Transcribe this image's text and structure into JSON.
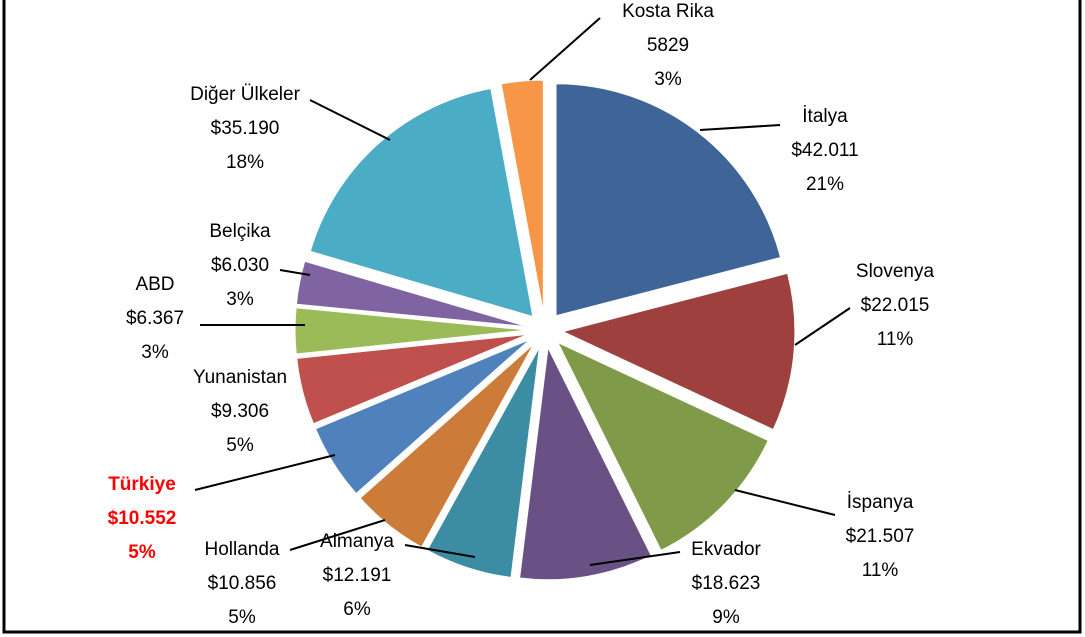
{
  "chart_data": {
    "type": "pie",
    "categories": [
      "İtalya",
      "Slovenya",
      "İspanya",
      "Ekvador",
      "Almanya",
      "Hollanda",
      "Türkiye",
      "Yunanistan",
      "ABD",
      "Belçika",
      "Diğer Ülkeler",
      "Kosta Rika"
    ],
    "values": [
      42011,
      22015,
      21507,
      18623,
      12191,
      10856,
      10552,
      9306,
      6367,
      6030,
      35190,
      5829
    ],
    "value_labels": [
      "$42.011",
      "$22.015",
      "$21.507",
      "$18.623",
      "$12.191",
      "$10.856",
      "$10.552",
      "$9.306",
      "$6.367",
      "$6.030",
      "$35.190",
      "5829"
    ],
    "percent_labels": [
      "21%",
      "11%",
      "11%",
      "9%",
      "6%",
      "5%",
      "5%",
      "5%",
      "3%",
      "3%",
      "18%",
      "3%"
    ],
    "colors": [
      "#3f6598",
      "#9e413e",
      "#7f9a48",
      "#695185",
      "#3c8da3",
      "#cc7b38",
      "#4f81bd",
      "#c0504d",
      "#9bbb59",
      "#8064a2",
      "#4bacc6",
      "#f79646"
    ],
    "highlight_color": "#ff0000"
  }
}
